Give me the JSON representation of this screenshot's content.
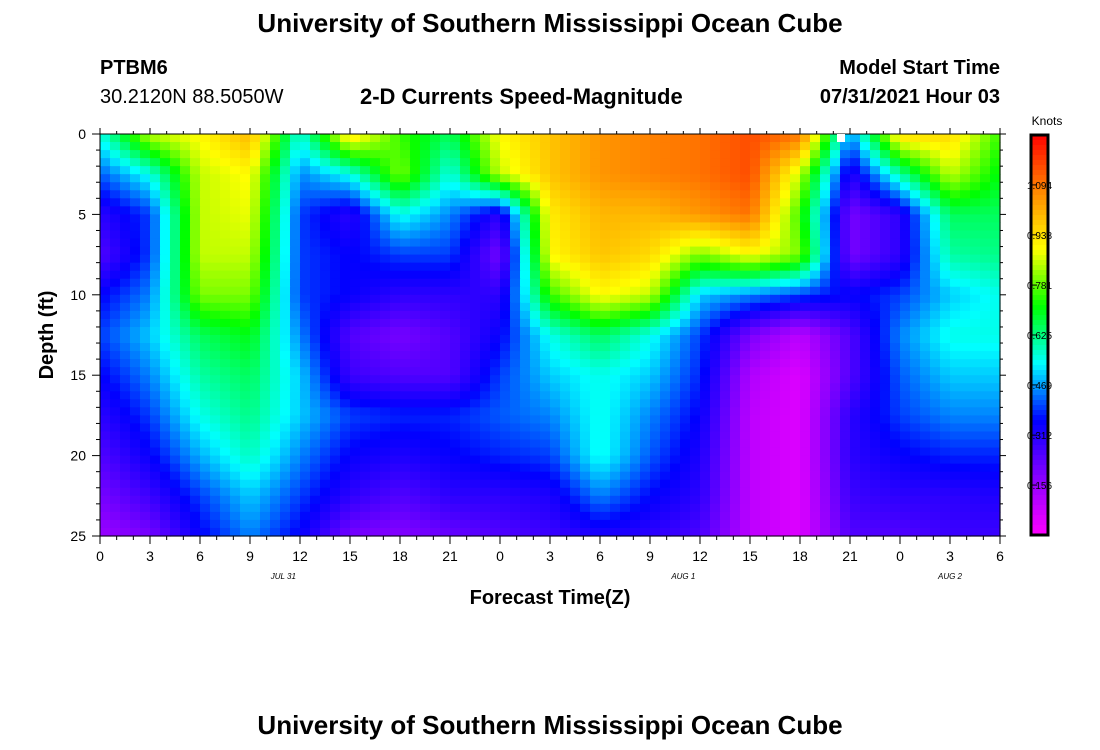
{
  "page": {
    "title_top": "University of Southern Mississippi Ocean Cube",
    "title_bottom": "University of Southern Mississippi Ocean Cube",
    "station": "PTBM6",
    "coords": "30.2120N  88.5050W",
    "plot_title": "2-D Currents Speed-Magnitude",
    "model_start_label": "Model Start Time",
    "model_start_value": "07/31/2021 Hour 03"
  },
  "chart_data": {
    "type": "heatmap",
    "title": "2-D Currents Speed-Magnitude",
    "xlabel": "Forecast Time(Z)",
    "ylabel": "Depth (ft)",
    "x_ticks": [
      "0",
      "3",
      "6",
      "9",
      "12",
      "15",
      "18",
      "21",
      "0",
      "3",
      "6",
      "9",
      "12",
      "15",
      "18",
      "21",
      "0",
      "3",
      "6"
    ],
    "x_range_hours": [
      0,
      54
    ],
    "date_labels": [
      {
        "text": "JUL 31",
        "hour": 11
      },
      {
        "text": "AUG 1",
        "hour": 35
      },
      {
        "text": "AUG 2",
        "hour": 51
      }
    ],
    "y_ticks": [
      "0",
      "5",
      "10",
      "15",
      "20",
      "25"
    ],
    "ylim": [
      0,
      25
    ],
    "y_inverted": true,
    "colorbar": {
      "unit": "Knots",
      "labels": [
        "1.094",
        "0.938",
        "0.781",
        "0.625",
        "0.469",
        "0.312",
        "0.156"
      ],
      "min": 0,
      "max": 1.25,
      "colors": [
        "#ff00ff",
        "#8800ff",
        "#0000ff",
        "#00ffff",
        "#00ff00",
        "#ffff00",
        "#ff8800",
        "#ff0000"
      ]
    },
    "time_hours": [
      0,
      3,
      6,
      9,
      12,
      15,
      18,
      21,
      24,
      27,
      30,
      33,
      36,
      39,
      42,
      45,
      48,
      51,
      54
    ],
    "depth_ft": [
      0,
      2.5,
      5,
      7.5,
      10,
      12.5,
      15,
      17.5,
      20,
      22.5,
      25
    ],
    "speed_knots": [
      [
        0.55,
        0.85,
        0.9,
        1.0,
        0.55,
        0.95,
        0.75,
        0.65,
        0.9,
        0.98,
        1.05,
        1.08,
        1.1,
        1.15,
        1.1,
        0.45,
        0.95,
        0.95,
        0.75
      ],
      [
        0.42,
        0.55,
        0.85,
        0.9,
        0.45,
        0.55,
        0.8,
        0.55,
        0.85,
        0.98,
        1.05,
        1.08,
        1.1,
        1.15,
        0.85,
        0.3,
        0.6,
        0.85,
        0.7
      ],
      [
        0.3,
        0.4,
        0.85,
        0.88,
        0.4,
        0.3,
        0.55,
        0.45,
        0.3,
        0.92,
        1.0,
        1.0,
        1.05,
        1.1,
        0.75,
        0.2,
        0.3,
        0.65,
        0.65
      ],
      [
        0.25,
        0.4,
        0.85,
        0.85,
        0.4,
        0.35,
        0.4,
        0.4,
        0.2,
        0.9,
        0.98,
        0.95,
        0.8,
        0.9,
        0.8,
        0.2,
        0.3,
        0.6,
        0.62
      ],
      [
        0.35,
        0.45,
        0.8,
        0.8,
        0.4,
        0.35,
        0.3,
        0.3,
        0.3,
        0.75,
        0.9,
        0.85,
        0.5,
        0.45,
        0.4,
        0.35,
        0.4,
        0.5,
        0.55
      ],
      [
        0.4,
        0.5,
        0.65,
        0.7,
        0.45,
        0.25,
        0.2,
        0.25,
        0.35,
        0.55,
        0.65,
        0.55,
        0.4,
        0.2,
        0.1,
        0.25,
        0.45,
        0.55,
        0.55
      ],
      [
        0.35,
        0.45,
        0.6,
        0.65,
        0.5,
        0.28,
        0.25,
        0.25,
        0.4,
        0.5,
        0.55,
        0.5,
        0.38,
        0.12,
        0.05,
        0.25,
        0.42,
        0.5,
        0.5
      ],
      [
        0.3,
        0.4,
        0.55,
        0.62,
        0.5,
        0.4,
        0.38,
        0.38,
        0.42,
        0.45,
        0.55,
        0.45,
        0.35,
        0.1,
        0.05,
        0.3,
        0.4,
        0.45,
        0.45
      ],
      [
        0.25,
        0.35,
        0.48,
        0.58,
        0.45,
        0.35,
        0.32,
        0.35,
        0.38,
        0.4,
        0.55,
        0.42,
        0.32,
        0.1,
        0.05,
        0.3,
        0.35,
        0.38,
        0.38
      ],
      [
        0.2,
        0.28,
        0.4,
        0.5,
        0.4,
        0.3,
        0.25,
        0.3,
        0.3,
        0.32,
        0.45,
        0.36,
        0.3,
        0.1,
        0.05,
        0.28,
        0.3,
        0.3,
        0.32
      ],
      [
        0.15,
        0.2,
        0.35,
        0.45,
        0.35,
        0.2,
        0.18,
        0.22,
        0.25,
        0.28,
        0.32,
        0.3,
        0.26,
        0.1,
        0.05,
        0.25,
        0.25,
        0.28,
        0.28
      ]
    ]
  }
}
